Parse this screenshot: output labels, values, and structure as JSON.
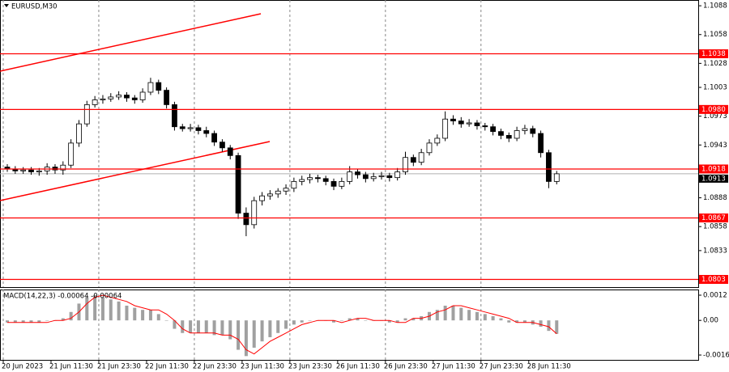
{
  "chart_data": {
    "type": "candlestick",
    "title": "EURUSD,M30",
    "candles": [
      [
        1.092,
        1.0923,
        1.0915,
        1.0918
      ],
      [
        1.0918,
        1.0921,
        1.0913,
        1.0916
      ],
      [
        1.0916,
        1.092,
        1.0913,
        1.0917
      ],
      [
        1.0917,
        1.092,
        1.0912,
        1.0915
      ],
      [
        1.0915,
        1.0919,
        1.0911,
        1.0916
      ],
      [
        1.0916,
        1.0924,
        1.0912,
        1.092
      ],
      [
        1.092,
        1.0923,
        1.0913,
        1.0917
      ],
      [
        1.0917,
        1.0926,
        1.0912,
        1.0922
      ],
      [
        1.0922,
        1.0949,
        1.0919,
        1.0945
      ],
      [
        1.0945,
        1.0969,
        1.0941,
        1.0965
      ],
      [
        1.0965,
        1.0989,
        1.0962,
        1.0985
      ],
      [
        1.0985,
        1.0994,
        1.0982,
        1.099
      ],
      [
        1.099,
        1.0995,
        1.0986,
        1.0991
      ],
      [
        1.0991,
        1.0997,
        1.0988,
        1.0993
      ],
      [
        1.0993,
        1.0999,
        1.099,
        1.0995
      ],
      [
        1.0995,
        1.0998,
        1.0988,
        1.0992
      ],
      [
        1.0992,
        1.0995,
        1.0986,
        1.099
      ],
      [
        1.099,
        1.1002,
        1.0987,
        1.0998
      ],
      [
        1.0998,
        1.1013,
        1.0995,
        1.1008
      ],
      [
        1.1008,
        1.1011,
        1.0996,
        1.1
      ],
      [
        1.1,
        1.1003,
        1.0981,
        1.0985
      ],
      [
        1.0985,
        1.0988,
        1.0958,
        1.0962
      ],
      [
        1.0962,
        1.0965,
        1.0957,
        1.096
      ],
      [
        1.096,
        1.0965,
        1.0957,
        1.0961
      ],
      [
        1.0961,
        1.0964,
        1.0954,
        1.0958
      ],
      [
        1.0958,
        1.0962,
        1.0951,
        1.0955
      ],
      [
        1.0955,
        1.0958,
        1.0942,
        1.0946
      ],
      [
        1.0946,
        1.0949,
        1.0936,
        1.094
      ],
      [
        1.094,
        1.0943,
        1.0928,
        1.0932
      ],
      [
        1.0932,
        1.0935,
        1.0866,
        1.0872
      ],
      [
        1.0872,
        1.0878,
        1.0848,
        1.086
      ],
      [
        1.086,
        1.0889,
        1.0856,
        1.0885
      ],
      [
        1.0885,
        1.0894,
        1.088,
        1.089
      ],
      [
        1.089,
        1.0896,
        1.0886,
        1.0892
      ],
      [
        1.0892,
        1.0898,
        1.0888,
        1.0895
      ],
      [
        1.0895,
        1.0902,
        1.0891,
        1.0898
      ],
      [
        1.0898,
        1.0909,
        1.0894,
        1.0905
      ],
      [
        1.0905,
        1.0911,
        1.0901,
        1.0907
      ],
      [
        1.0907,
        1.0913,
        1.0903,
        1.0909
      ],
      [
        1.0909,
        1.0912,
        1.0904,
        1.0908
      ],
      [
        1.0908,
        1.0911,
        1.0901,
        1.0905
      ],
      [
        1.0905,
        1.0908,
        1.0896,
        1.09
      ],
      [
        1.09,
        1.0909,
        1.0897,
        1.0905
      ],
      [
        1.0905,
        1.0921,
        1.0902,
        1.0915
      ],
      [
        1.0915,
        1.0918,
        1.0908,
        1.0912
      ],
      [
        1.0912,
        1.0915,
        1.0904,
        1.0908
      ],
      [
        1.0908,
        1.0914,
        1.0905,
        1.091
      ],
      [
        1.091,
        1.0915,
        1.0907,
        1.0911
      ],
      [
        1.0911,
        1.0914,
        1.0905,
        1.0909
      ],
      [
        1.0909,
        1.0919,
        1.0906,
        1.0915
      ],
      [
        1.0915,
        1.0936,
        1.0912,
        1.093
      ],
      [
        1.093,
        1.0933,
        1.0921,
        1.0925
      ],
      [
        1.0925,
        1.0939,
        1.0922,
        1.0935
      ],
      [
        1.0935,
        1.0949,
        1.0932,
        1.0945
      ],
      [
        1.0945,
        1.0954,
        1.0942,
        1.095
      ],
      [
        1.095,
        1.0978,
        1.0947,
        1.097
      ],
      [
        1.097,
        1.0974,
        1.0964,
        1.0968
      ],
      [
        1.0968,
        1.0972,
        1.0961,
        1.0965
      ],
      [
        1.0965,
        1.097,
        1.0962,
        1.0966
      ],
      [
        1.0966,
        1.0969,
        1.0959,
        1.0963
      ],
      [
        1.0963,
        1.0966,
        1.0958,
        1.0962
      ],
      [
        1.0962,
        1.0965,
        1.0953,
        1.0957
      ],
      [
        1.0957,
        1.096,
        1.0949,
        1.0953
      ],
      [
        1.0953,
        1.0956,
        1.0946,
        1.095
      ],
      [
        1.095,
        1.0962,
        1.0947,
        1.0958
      ],
      [
        1.0958,
        1.0964,
        1.0954,
        1.096
      ],
      [
        1.096,
        1.0963,
        1.0951,
        1.0955
      ],
      [
        1.0955,
        1.0958,
        1.093,
        1.0935
      ],
      [
        1.0935,
        1.0938,
        1.0898,
        1.0905
      ],
      [
        1.0905,
        1.0916,
        1.0902,
        1.0913
      ]
    ],
    "color": "#000000",
    "ylim": [
      1.0795,
      1.1094
    ],
    "yticks": [
      1.1088,
      1.1058,
      1.1028,
      1.1003,
      1.0973,
      1.0943,
      1.0888,
      1.0858,
      1.0833
    ],
    "levels": [
      1.1038,
      {
        "value": 1.098,
        "label": "1.0980"
      },
      1.0918,
      1.0867,
      1.0803
    ],
    "level_color": "#ff0000",
    "xticks": [
      {
        "value": 0,
        "label": "20 Jun 2023"
      },
      {
        "value": 6,
        "label": "21 Jun 11:30"
      },
      {
        "value": 12,
        "label": "21 Jun 23:30"
      },
      {
        "value": 18,
        "label": "22 Jun 11:30"
      },
      {
        "value": 24,
        "label": "22 Jun 23:30"
      },
      {
        "value": 30,
        "label": "23 Jun 11:30"
      },
      {
        "value": 36,
        "label": "23 Jun 23:30"
      },
      {
        "value": 42,
        "label": "26 Jun 11:30"
      },
      {
        "value": 48,
        "label": "26 Jun 23:30"
      },
      {
        "value": 54,
        "label": "27 Jun 11:30"
      },
      {
        "value": 60,
        "label": "27 Jun 23:30"
      },
      {
        "value": 66,
        "label": "28 Jun 11:30"
      }
    ],
    "macd": {
      "title": "MACD(14,22,3) -0.00064 -0.00064",
      "histogram": [
        -0.0001,
        -0.0001,
        -0.0001,
        -0.0001,
        -0.0001,
        0,
        0,
        0.0001,
        0.0004,
        0.0008,
        0.0011,
        0.0012,
        0.0011,
        0.001,
        0.0009,
        0.0007,
        0.0006,
        0.0005,
        0.0005,
        0.0003,
        0,
        -0.0004,
        -0.0006,
        -0.0006,
        -0.0006,
        -0.0006,
        -0.0007,
        -0.0007,
        -0.0009,
        -0.0014,
        -0.0017,
        -0.0013,
        -0.001,
        -0.0008,
        -0.0006,
        -0.0004,
        -0.0002,
        -0.0001,
        0,
        0,
        0,
        -0.0001,
        0,
        0.0001,
        0.0001,
        0,
        0,
        0,
        -0.0001,
        -0.0001,
        0.0001,
        0.0001,
        0.0002,
        0.0004,
        0.0005,
        0.0007,
        0.0007,
        0.0006,
        0.0005,
        0.0004,
        0.0003,
        0.0002,
        0.0001,
        -0.0001,
        -0.0001,
        -0.0001,
        -0.0002,
        -0.0003,
        -0.0005,
        -0.00064
      ],
      "signal": [
        -0.0001,
        -0.0001,
        -0.0001,
        -0.0001,
        -0.0001,
        -0.0001,
        0,
        0,
        0.0001,
        0.0004,
        0.0008,
        0.0011,
        0.0012,
        0.0011,
        0.001,
        0.0009,
        0.0007,
        0.0006,
        0.0005,
        0.0005,
        0.0003,
        0,
        -0.0004,
        -0.0006,
        -0.0006,
        -0.0006,
        -0.0006,
        -0.0007,
        -0.0007,
        -0.0009,
        -0.0014,
        -0.0016,
        -0.0013,
        -0.001,
        -0.0008,
        -0.0006,
        -0.0004,
        -0.0002,
        -0.0001,
        0,
        0,
        0,
        -0.0001,
        0,
        0.0001,
        0.0001,
        0,
        0,
        0,
        -0.0001,
        -0.0001,
        0.0001,
        0.0001,
        0.0002,
        0.0004,
        0.0005,
        0.0007,
        0.0007,
        0.0006,
        0.0005,
        0.0004,
        0.0003,
        0.0002,
        0.0001,
        -0.0001,
        -0.0001,
        -0.0001,
        -0.0002,
        -0.0003,
        -0.00064
      ],
      "histogram_color": "#a0a0a0",
      "signal_color": "#ff0000",
      "ylim": [
        -0.00188,
        0.00147
      ],
      "yticks": [
        0.0012,
        {
          "value": 0,
          "label": "0.00"
        },
        -0.00165
      ]
    }
  }
}
